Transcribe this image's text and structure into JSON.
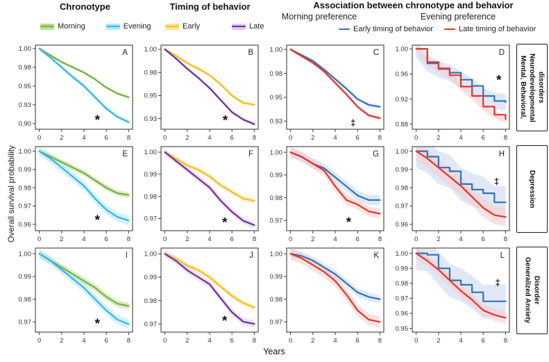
{
  "figure": {
    "headers": {
      "col1": "Chronotype",
      "col2": "Timing of behavior",
      "assoc": "Association between chronotype  and behavior",
      "assoc_sub_left": "Morning preference",
      "assoc_sub_right": "Evening preference"
    },
    "legends": {
      "chronotype": [
        {
          "label": "Morning",
          "line": "#76b043",
          "band": "#bcdc92"
        },
        {
          "label": "Evening",
          "line": "#35b5e5",
          "band": "#b0e6f7"
        }
      ],
      "timing": [
        {
          "label": "Early",
          "line": "#f3c117",
          "band": "#fae3a2"
        },
        {
          "label": "Late",
          "line": "#6d2f9c",
          "band": "#dccbea"
        }
      ],
      "assoc": [
        {
          "label": "Early timing of behavior",
          "line": "#2e74b5",
          "band": "#c7d6ee"
        },
        {
          "label": "Late timing of behavior",
          "line": "#e5342e",
          "band": "#f6cbc8"
        }
      ]
    },
    "ylabel": "Overall survival probability",
    "xlabel": "Years",
    "row_labels": [
      "Mental, Behavioral,\nNeurodevelopmental\ndisorders",
      "Depression",
      "Generalized Anxiety\nDisorder"
    ]
  },
  "chart_data": {
    "type": "line",
    "subtype": "kaplan-meier-survival-grid",
    "xlabel": "Years",
    "ylabel": "Overall survival probability",
    "x": [
      0,
      1,
      2,
      3,
      4,
      5,
      6,
      7,
      8
    ],
    "xticks": [
      "0",
      "2",
      "4",
      "6",
      "8"
    ],
    "grid": "off",
    "panels": [
      {
        "letter": "A",
        "column_group": "Chronotype",
        "row_group": "Mental, Behavioral, Neurodevelopmental disorders",
        "ylim": [
          0.8925,
          1.0045
        ],
        "yticks": [
          {
            "v": 1.0,
            "label": "1.00"
          },
          {
            "v": 0.975,
            "label": "0.98"
          },
          {
            "v": 0.95,
            "label": "0.95"
          },
          {
            "v": 0.925,
            "label": "0.93"
          },
          {
            "v": 0.9,
            "label": "0.90"
          }
        ],
        "annotation": {
          "symbol": "*",
          "x": 5.2,
          "y": 0.9055
        },
        "series": [
          {
            "name": "Morning",
            "color": "#76b043",
            "band": "#bcdc92",
            "d": 0.0018,
            "step": false,
            "y": [
              1.0,
              0.991,
              0.982,
              0.975,
              0.968,
              0.959,
              0.948,
              0.94,
              0.935
            ]
          },
          {
            "name": "Evening",
            "color": "#35b5e5",
            "band": "#b0e6f7",
            "d": 0.003,
            "step": false,
            "y": [
              1.0,
              0.988,
              0.975,
              0.962,
              0.95,
              0.935,
              0.92,
              0.909,
              0.902
            ]
          }
        ]
      },
      {
        "letter": "B",
        "column_group": "Timing of behavior",
        "row_group": "Mental, Behavioral, Neurodevelopmental disorders",
        "ylim": [
          0.9135,
          1.0045
        ],
        "yticks": [
          {
            "v": 1.0,
            "label": "1.00"
          },
          {
            "v": 0.975,
            "label": "0.98"
          },
          {
            "v": 0.95,
            "label": "0.95"
          },
          {
            "v": 0.925,
            "label": "0.93"
          }
        ],
        "annotation": {
          "symbol": "*",
          "x": 5.4,
          "y": 0.9235
        },
        "series": [
          {
            "name": "Early",
            "color": "#f3c117",
            "band": "#fae3a2",
            "d": 0.002,
            "step": false,
            "y": [
              1.0,
              0.993,
              0.985,
              0.979,
              0.972,
              0.962,
              0.95,
              0.942,
              0.94
            ]
          },
          {
            "name": "Late",
            "color": "#6d2f9c",
            "band": "#dccbea",
            "d": 0.002,
            "step": false,
            "y": [
              1.0,
              0.99,
              0.979,
              0.969,
              0.958,
              0.945,
              0.932,
              0.924,
              0.919
            ]
          }
        ]
      },
      {
        "letter": "C",
        "column_group": "Morning preference",
        "row_group": "Mental, Behavioral, Neurodevelopmental disorders",
        "ylim": [
          0.9165,
          1.0045
        ],
        "yticks": [
          {
            "v": 1.0,
            "label": "1.00"
          },
          {
            "v": 0.975,
            "label": "0.98"
          },
          {
            "v": 0.95,
            "label": "0.95"
          },
          {
            "v": 0.925,
            "label": "0.93"
          }
        ],
        "annotation": {
          "symbol": "‡",
          "x": 5.6,
          "y": 0.9235
        },
        "series": [
          {
            "name": "Early timing of behavior",
            "color": "#2e74b5",
            "band": "#c7d6ee",
            "d": 0.002,
            "step": false,
            "y": [
              1.0,
              0.994,
              0.988,
              0.979,
              0.969,
              0.959,
              0.948,
              0.942,
              0.94
            ]
          },
          {
            "name": "Late timing of behavior",
            "color": "#e5342e",
            "band": "#f6cbc8",
            "d": 0.002,
            "step": false,
            "y": [
              1.0,
              0.993,
              0.986,
              0.977,
              0.965,
              0.953,
              0.94,
              0.931,
              0.928
            ]
          }
        ]
      },
      {
        "letter": "D",
        "column_group": "Evening preference",
        "row_group": "Mental, Behavioral, Neurodevelopmental disorders",
        "ylim": [
          0.872,
          1.006
        ],
        "yticks": [
          {
            "v": 1.0,
            "label": "1.00"
          },
          {
            "v": 0.96,
            "label": "0.96"
          },
          {
            "v": 0.92,
            "label": "0.92"
          },
          {
            "v": 0.88,
            "label": "0.88"
          }
        ],
        "annotation": {
          "symbol": "*",
          "x": 7.4,
          "y": 0.951
        },
        "series": [
          {
            "name": "Early timing of behavior",
            "color": "#2e74b5",
            "band": "#c7d6ee",
            "d": 0.013,
            "step": true,
            "y": [
              1.0,
              0.977,
              0.968,
              0.962,
              0.951,
              0.941,
              0.925,
              0.917,
              0.915
            ]
          },
          {
            "name": "Late timing of behavior",
            "color": "#e5342e",
            "band": "#f6cbc8",
            "d": 0.006,
            "step": true,
            "y": [
              1.0,
              0.979,
              0.969,
              0.958,
              0.94,
              0.925,
              0.908,
              0.895,
              0.888
            ]
          }
        ]
      },
      {
        "letter": "E",
        "column_group": "Chronotype",
        "row_group": "Depression",
        "ylim": [
          0.9565,
          1.0025
        ],
        "yticks": [
          {
            "v": 1.0,
            "label": "1.00"
          },
          {
            "v": 0.99,
            "label": "0.99"
          },
          {
            "v": 0.98,
            "label": "0.98"
          },
          {
            "v": 0.97,
            "label": "0.97"
          },
          {
            "v": 0.96,
            "label": "0.96"
          }
        ],
        "annotation": {
          "symbol": "*",
          "x": 5.2,
          "y": 0.9625
        },
        "series": [
          {
            "name": "Morning",
            "color": "#76b043",
            "band": "#bcdc92",
            "d": 0.0015,
            "step": false,
            "y": [
              1.0,
              0.997,
              0.994,
              0.991,
              0.988,
              0.984,
              0.98,
              0.977,
              0.976
            ]
          },
          {
            "name": "Evening",
            "color": "#35b5e5",
            "band": "#b0e6f7",
            "d": 0.0025,
            "step": false,
            "y": [
              1.0,
              0.996,
              0.991,
              0.986,
              0.981,
              0.974,
              0.968,
              0.964,
              0.962
            ]
          }
        ]
      },
      {
        "letter": "F",
        "column_group": "Timing of behavior",
        "row_group": "Depression",
        "ylim": [
          0.9645,
          1.0025
        ],
        "yticks": [
          {
            "v": 1.0,
            "label": "1.00"
          },
          {
            "v": 0.99,
            "label": "0.99"
          },
          {
            "v": 0.98,
            "label": "0.98"
          },
          {
            "v": 0.97,
            "label": "0.97"
          }
        ],
        "annotation": {
          "symbol": "*",
          "x": 5.35,
          "y": 0.9685
        },
        "series": [
          {
            "name": "Early",
            "color": "#f3c117",
            "band": "#fae3a2",
            "d": 0.0012,
            "step": false,
            "y": [
              1.0,
              0.997,
              0.994,
              0.992,
              0.989,
              0.985,
              0.982,
              0.979,
              0.978
            ]
          },
          {
            "name": "Late",
            "color": "#6d2f9c",
            "band": "#dccbea",
            "d": 0.0015,
            "step": false,
            "y": [
              1.0,
              0.996,
              0.992,
              0.988,
              0.984,
              0.978,
              0.973,
              0.969,
              0.967
            ]
          }
        ]
      },
      {
        "letter": "G",
        "column_group": "Morning preference",
        "row_group": "Depression",
        "ylim": [
          0.9655,
          1.0025
        ],
        "yticks": [
          {
            "v": 1.0,
            "label": "1.00"
          },
          {
            "v": 0.99,
            "label": "0.99"
          },
          {
            "v": 0.98,
            "label": "0.98"
          },
          {
            "v": 0.97,
            "label": "0.97"
          }
        ],
        "annotation": {
          "symbol": "*",
          "x": 5.2,
          "y": 0.9695
        },
        "series": [
          {
            "name": "Early timing of behavior",
            "color": "#2e74b5",
            "band": "#c7d6ee",
            "d": 0.0022,
            "step": false,
            "y": [
              1.0,
              0.998,
              0.995,
              0.993,
              0.989,
              0.985,
              0.981,
              0.979,
              0.979
            ]
          },
          {
            "name": "Late timing of behavior",
            "color": "#e5342e",
            "band": "#f6cbc8",
            "d": 0.0022,
            "step": false,
            "y": [
              1.0,
              0.998,
              0.995,
              0.992,
              0.985,
              0.979,
              0.977,
              0.974,
              0.973
            ]
          }
        ]
      },
      {
        "letter": "H",
        "column_group": "Evening preference",
        "row_group": "Depression",
        "ylim": [
          0.9565,
          1.0025
        ],
        "yticks": [
          {
            "v": 1.0,
            "label": "1.00"
          },
          {
            "v": 0.99,
            "label": "0.99"
          },
          {
            "v": 0.98,
            "label": "0.98"
          },
          {
            "v": 0.97,
            "label": "0.97"
          },
          {
            "v": 0.96,
            "label": "0.96"
          }
        ],
        "annotation": {
          "symbol": "‡",
          "x": 7.2,
          "y": 0.9835
        },
        "series": [
          {
            "name": "Early timing of behavior",
            "color": "#2e74b5",
            "band": "#c7d6ee",
            "d": 0.009,
            "step": true,
            "y": [
              1.0,
              0.997,
              0.991,
              0.989,
              0.982,
              0.979,
              0.977,
              0.972,
              0.972
            ]
          },
          {
            "name": "Late timing of behavior",
            "color": "#e5342e",
            "band": "#f6cbc8",
            "d": 0.005,
            "step": false,
            "y": [
              1.0,
              0.996,
              0.991,
              0.986,
              0.981,
              0.975,
              0.969,
              0.965,
              0.964
            ]
          }
        ]
      },
      {
        "letter": "I",
        "column_group": "Chronotype",
        "row_group": "Generalized Anxiety Disorder",
        "ylim": [
          0.9655,
          1.0025
        ],
        "yticks": [
          {
            "v": 1.0,
            "label": "1.00"
          },
          {
            "v": 0.99,
            "label": "0.99"
          },
          {
            "v": 0.98,
            "label": "0.98"
          },
          {
            "v": 0.97,
            "label": "0.97"
          }
        ],
        "annotation": {
          "symbol": "*",
          "x": 5.2,
          "y": 0.9695
        },
        "series": [
          {
            "name": "Morning",
            "color": "#76b043",
            "band": "#bcdc92",
            "d": 0.0015,
            "step": false,
            "y": [
              1.0,
              0.997,
              0.994,
              0.991,
              0.988,
              0.985,
              0.981,
              0.978,
              0.977
            ]
          },
          {
            "name": "Evening",
            "color": "#35b5e5",
            "band": "#b0e6f7",
            "d": 0.002,
            "step": false,
            "y": [
              1.0,
              0.997,
              0.993,
              0.989,
              0.985,
              0.98,
              0.975,
              0.971,
              0.969
            ]
          }
        ]
      },
      {
        "letter": "J",
        "column_group": "Timing of behavior",
        "row_group": "Generalized Anxiety Disorder",
        "ylim": [
          0.9665,
          1.0025
        ],
        "yticks": [
          {
            "v": 1.0,
            "label": "1.00"
          },
          {
            "v": 0.99,
            "label": "0.99"
          },
          {
            "v": 0.98,
            "label": "0.98"
          },
          {
            "v": 0.97,
            "label": "0.97"
          }
        ],
        "annotation": {
          "symbol": "*",
          "x": 5.35,
          "y": 0.9715
        },
        "series": [
          {
            "name": "Early",
            "color": "#f3c117",
            "band": "#fae3a2",
            "d": 0.0012,
            "step": false,
            "y": [
              1.0,
              0.998,
              0.995,
              0.993,
              0.99,
              0.986,
              0.982,
              0.979,
              0.977
            ]
          },
          {
            "name": "Late",
            "color": "#6d2f9c",
            "band": "#dccbea",
            "d": 0.0015,
            "step": false,
            "y": [
              1.0,
              0.997,
              0.993,
              0.99,
              0.987,
              0.981,
              0.975,
              0.971,
              0.97
            ]
          }
        ]
      },
      {
        "letter": "K",
        "column_group": "Morning preference",
        "row_group": "Generalized Anxiety Disorder",
        "ylim": [
          0.9655,
          1.0025
        ],
        "yticks": [
          {
            "v": 1.0,
            "label": "1.00"
          },
          {
            "v": 0.99,
            "label": "0.99"
          },
          {
            "v": 0.98,
            "label": "0.98"
          },
          {
            "v": 0.97,
            "label": "0.97"
          }
        ],
        "annotation": null,
        "series": [
          {
            "name": "Early timing of behavior",
            "color": "#2e74b5",
            "band": "#c7d6ee",
            "d": 0.0018,
            "step": false,
            "y": [
              1.0,
              0.999,
              0.997,
              0.994,
              0.991,
              0.987,
              0.983,
              0.981,
              0.98
            ]
          },
          {
            "name": "Late timing of behavior",
            "color": "#e5342e",
            "band": "#f6cbc8",
            "d": 0.0025,
            "step": false,
            "y": [
              1.0,
              0.998,
              0.995,
              0.992,
              0.988,
              0.982,
              0.975,
              0.971,
              0.97
            ]
          }
        ]
      },
      {
        "letter": "L",
        "column_group": "Evening preference",
        "row_group": "Generalized Anxiety Disorder",
        "ylim": [
          0.9475,
          1.0035
        ],
        "yticks": [
          {
            "v": 1.0,
            "label": "1.00"
          },
          {
            "v": 0.99,
            "label": "0.99"
          },
          {
            "v": 0.98,
            "label": "0.98"
          },
          {
            "v": 0.97,
            "label": "0.97"
          },
          {
            "v": 0.96,
            "label": "0.96"
          },
          {
            "v": 0.95,
            "label": "0.95"
          }
        ],
        "annotation": {
          "symbol": "‡",
          "x": 7.3,
          "y": 0.9805
        },
        "series": [
          {
            "name": "Early timing of behavior",
            "color": "#2e74b5",
            "band": "#c7d6ee",
            "d": 0.011,
            "step": true,
            "y": [
              1.0,
              0.999,
              0.99,
              0.982,
              0.979,
              0.974,
              0.968,
              0.968,
              0.968
            ]
          },
          {
            "name": "Late timing of behavior",
            "color": "#e5342e",
            "band": "#f6cbc8",
            "d": 0.004,
            "step": false,
            "y": [
              1.0,
              0.995,
              0.989,
              0.982,
              0.975,
              0.969,
              0.962,
              0.959,
              0.957
            ]
          }
        ]
      }
    ]
  }
}
